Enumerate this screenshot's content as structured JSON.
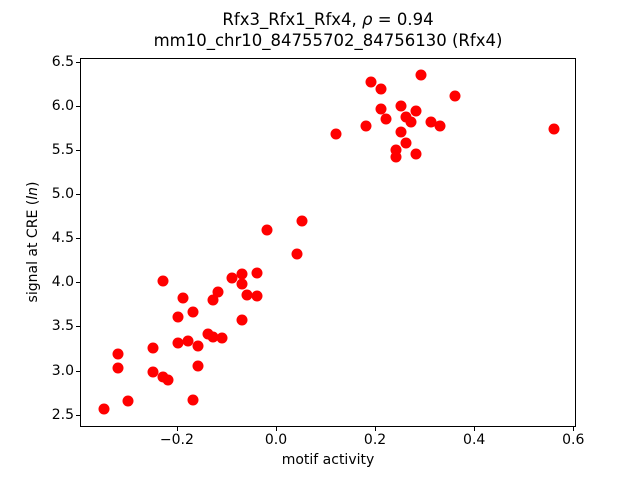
{
  "chart_data": {
    "type": "scatter",
    "title_parts": {
      "prefix": "Rfx3_Rfx1_Rfx4, ",
      "rho": "ρ",
      "suffix": " = 0.94"
    },
    "subtitle": "mm10_chr10_84755702_84756130 (Rfx4)",
    "xlabel": "motif activity",
    "ylabel_parts": {
      "prefix": "signal at CRE (",
      "italic": "ln",
      "suffix": ")"
    },
    "marker_color": "#ff0000",
    "marker_shape": "circle",
    "xlim": [
      -0.3955,
      0.6055
    ],
    "ylim": [
      2.36,
      6.545
    ],
    "xticks": [
      -0.2,
      0.0,
      0.2,
      0.4,
      0.6
    ],
    "xtick_labels": [
      "−0.2",
      "0.0",
      "0.2",
      "0.4",
      "0.6"
    ],
    "yticks": [
      2.5,
      3.0,
      3.5,
      4.0,
      4.5,
      5.0,
      5.5,
      6.0,
      6.5
    ],
    "ytick_labels": [
      "2.5",
      "3.0",
      "3.5",
      "4.0",
      "4.5",
      "5.0",
      "5.5",
      "6.0",
      "6.5"
    ],
    "grid": false,
    "legend": null,
    "points": [
      [
        0.29,
        6.36
      ],
      [
        0.19,
        6.28
      ],
      [
        0.21,
        6.21
      ],
      [
        0.36,
        6.13
      ],
      [
        0.25,
        6.01
      ],
      [
        0.21,
        5.98
      ],
      [
        0.28,
        5.96
      ],
      [
        0.26,
        5.89
      ],
      [
        0.22,
        5.87
      ],
      [
        0.27,
        5.83
      ],
      [
        0.31,
        5.83
      ],
      [
        0.33,
        5.78
      ],
      [
        0.18,
        5.79
      ],
      [
        0.25,
        5.72
      ],
      [
        0.12,
        5.7
      ],
      [
        0.26,
        5.59
      ],
      [
        0.24,
        5.51
      ],
      [
        0.24,
        5.43
      ],
      [
        0.28,
        5.47
      ],
      [
        0.56,
        5.75
      ],
      [
        0.05,
        4.71
      ],
      [
        -0.02,
        4.61
      ],
      [
        0.04,
        4.33
      ],
      [
        -0.04,
        4.12
      ],
      [
        -0.07,
        4.11
      ],
      [
        -0.09,
        4.06
      ],
      [
        -0.23,
        4.03
      ],
      [
        -0.07,
        3.99
      ],
      [
        -0.12,
        3.9
      ],
      [
        -0.06,
        3.87
      ],
      [
        -0.04,
        3.86
      ],
      [
        -0.19,
        3.83
      ],
      [
        -0.13,
        3.81
      ],
      [
        -0.17,
        3.67
      ],
      [
        -0.2,
        3.62
      ],
      [
        -0.07,
        3.59
      ],
      [
        -0.14,
        3.43
      ],
      [
        -0.13,
        3.39
      ],
      [
        -0.11,
        3.38
      ],
      [
        -0.18,
        3.35
      ],
      [
        -0.2,
        3.32
      ],
      [
        -0.16,
        3.29
      ],
      [
        -0.25,
        3.27
      ],
      [
        -0.32,
        3.2
      ],
      [
        -0.16,
        3.06
      ],
      [
        -0.32,
        3.04
      ],
      [
        -0.25,
        2.99
      ],
      [
        -0.23,
        2.94
      ],
      [
        -0.22,
        2.91
      ],
      [
        -0.3,
        2.67
      ],
      [
        -0.17,
        2.68
      ],
      [
        -0.35,
        2.57
      ]
    ]
  }
}
